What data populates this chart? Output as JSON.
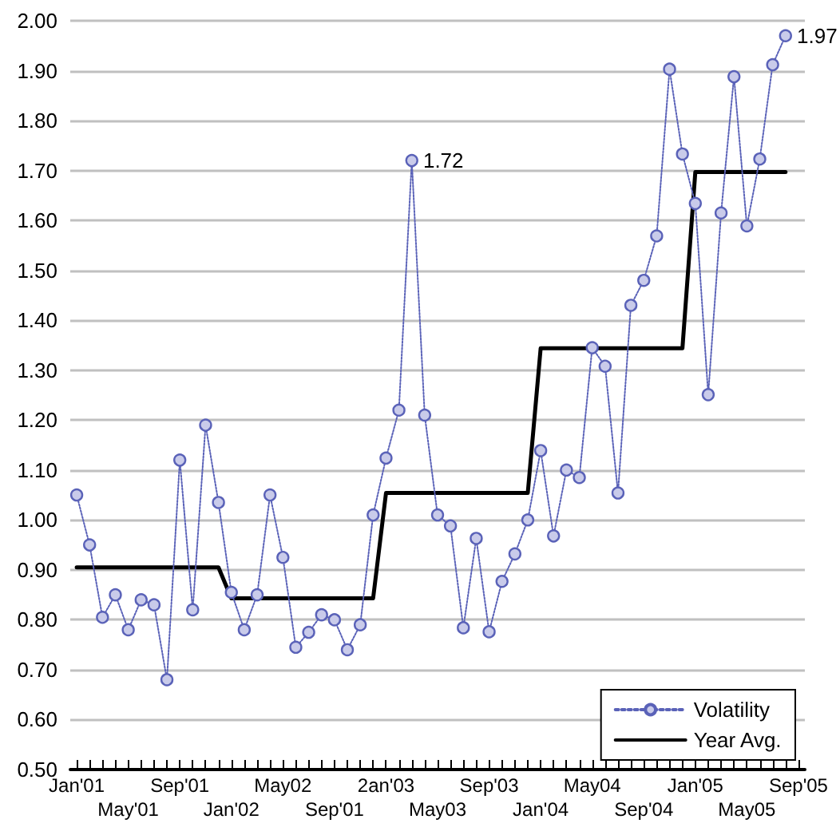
{
  "chart_data": {
    "type": "line",
    "categories": [
      "Jan'01",
      null,
      null,
      null,
      "May'01",
      null,
      null,
      null,
      "Sep'01",
      null,
      null,
      null,
      "Jan'02",
      null,
      null,
      null,
      "May02",
      null,
      null,
      null,
      "Sep'01",
      null,
      null,
      null,
      "2an'03",
      null,
      null,
      null,
      "May03",
      null,
      null,
      null,
      "Sep'03",
      null,
      null,
      null,
      "Jan'04",
      null,
      null,
      null,
      "May04",
      null,
      null,
      null,
      "Sep'04",
      null,
      null,
      null,
      "Jan'05",
      null,
      null,
      null,
      "May05",
      null,
      null,
      null,
      "Sep'05"
    ],
    "series": [
      {
        "name": "Volatility",
        "color": "#5a62b8",
        "marker": "circle",
        "line_style": "dotted",
        "values": [
          1.05,
          0.95,
          0.805,
          0.85,
          0.78,
          0.84,
          0.83,
          0.68,
          1.12,
          0.82,
          1.19,
          1.035,
          0.855,
          0.78,
          0.85,
          1.05,
          0.925,
          0.745,
          0.775,
          0.81,
          0.8,
          0.74,
          0.79,
          1.01,
          1.124,
          1.22,
          1.72,
          1.21,
          1.01,
          0.988,
          0.784,
          0.963,
          0.776,
          0.877,
          0.932,
          1.0,
          1.139,
          0.968,
          1.1,
          1.085,
          1.345,
          1.308,
          1.054,
          1.43,
          1.48,
          1.569,
          1.903,
          1.733,
          1.634,
          1.251,
          1.615,
          1.888,
          1.589,
          1.723,
          1.912,
          1.97,
          null
        ],
        "value_labels": [
          null,
          null,
          null,
          null,
          null,
          null,
          null,
          null,
          null,
          null,
          null,
          null,
          null,
          null,
          null,
          null,
          null,
          null,
          null,
          null,
          null,
          null,
          null,
          null,
          null,
          null,
          "1.72",
          null,
          null,
          null,
          null,
          null,
          null,
          null,
          null,
          null,
          null,
          null,
          null,
          null,
          null,
          null,
          null,
          null,
          null,
          null,
          null,
          null,
          null,
          null,
          null,
          null,
          null,
          null,
          null,
          "1.97",
          null
        ]
      },
      {
        "name": "Year Avg.",
        "color": "#000000",
        "marker": "none",
        "line_style": "solid",
        "values": [
          0.905,
          0.905,
          0.905,
          0.905,
          0.905,
          0.905,
          0.905,
          0.905,
          0.905,
          0.905,
          0.905,
          0.905,
          0.843,
          0.843,
          0.843,
          0.843,
          0.843,
          0.843,
          0.843,
          0.843,
          0.843,
          0.843,
          0.843,
          0.843,
          1.054,
          1.054,
          1.054,
          1.054,
          1.054,
          1.054,
          1.054,
          1.054,
          1.054,
          1.054,
          1.054,
          1.054,
          1.344,
          1.344,
          1.344,
          1.344,
          1.344,
          1.344,
          1.344,
          1.344,
          1.344,
          1.344,
          1.344,
          1.344,
          1.697,
          1.697,
          1.697,
          1.697,
          1.697,
          1.697,
          1.697,
          1.697,
          null
        ]
      }
    ],
    "ylim": [
      0.5,
      2.0
    ],
    "yticks": [
      {
        "value": 0.5,
        "label": "0.50"
      },
      {
        "value": 0.6,
        "label": "0.60"
      },
      {
        "value": 0.7,
        "label": "0.70"
      },
      {
        "value": 0.8,
        "label": "0.80"
      },
      {
        "value": 0.9,
        "label": "0.90"
      },
      {
        "value": 1.0,
        "label": "1.00"
      },
      {
        "value": 1.1,
        "label": "1.10"
      },
      {
        "value": 1.2,
        "label": "1.20"
      },
      {
        "value": 1.3,
        "label": "1.30"
      },
      {
        "value": 1.4,
        "label": "1.40"
      },
      {
        "value": 1.5,
        "label": "1.50"
      },
      {
        "value": 1.6,
        "label": "1.60"
      },
      {
        "value": 1.7,
        "label": "1.70"
      },
      {
        "value": 1.8,
        "label": "1.80"
      },
      {
        "value": 1.9,
        "label": "1.90"
      },
      {
        "value": 2.0,
        "label": "2.00"
      }
    ],
    "grid": "y",
    "legend": "bottom right"
  }
}
